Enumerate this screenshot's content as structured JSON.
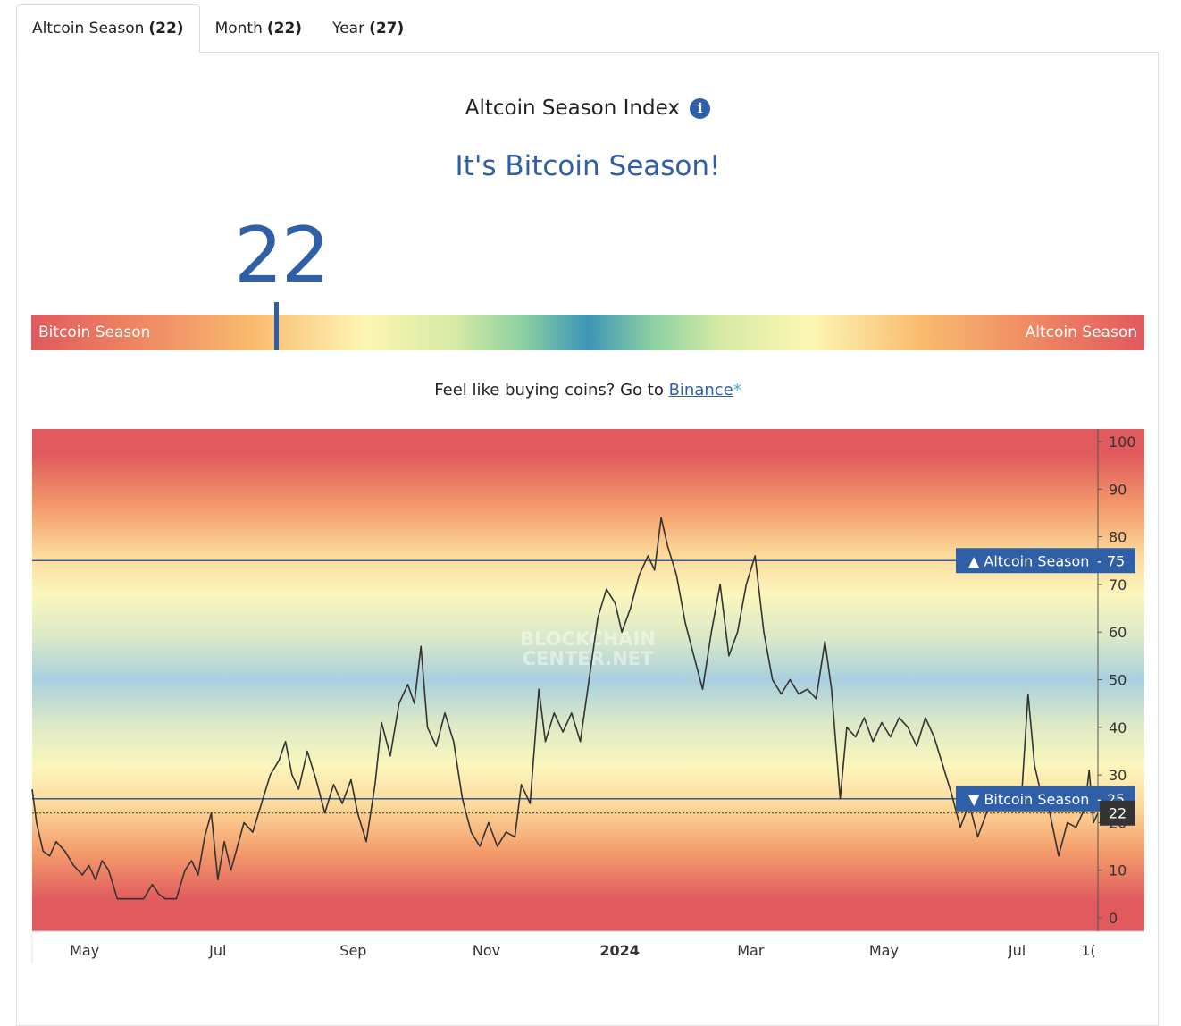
{
  "tabs": [
    {
      "label": "Altcoin Season",
      "count": "(22)"
    },
    {
      "label": "Month",
      "count": "(22)"
    },
    {
      "label": "Year",
      "count": "(27)"
    }
  ],
  "index": {
    "title": "Altcoin Season Index",
    "info_icon": "i",
    "headline": "It's Bitcoin Season!",
    "value": "22",
    "value_fraction": 0.22,
    "left_label": "Bitcoin Season",
    "right_label": "Altcoin Season"
  },
  "buy": {
    "prefix": "Feel like buying coins? Go to ",
    "link": "Binance",
    "suffix": "*"
  },
  "colors": {
    "accent": "#2f5fa7",
    "red": "#e05a5e",
    "teal": "#3d95b7"
  },
  "chart_data": {
    "type": "line",
    "watermark": [
      "BLOCKCHAIN",
      "CENTER.NET"
    ],
    "ylim": [
      -3,
      102
    ],
    "yticks": [
      0,
      10,
      20,
      30,
      40,
      50,
      60,
      70,
      80,
      90,
      100
    ],
    "xlim": [
      "2023-04-07",
      "2024-08-07"
    ],
    "xticks": [
      {
        "date": "2023-05-01",
        "label": "May",
        "bold": false
      },
      {
        "date": "2023-07-01",
        "label": "Jul",
        "bold": false
      },
      {
        "date": "2023-09-01",
        "label": "Sep",
        "bold": false
      },
      {
        "date": "2023-11-01",
        "label": "Nov",
        "bold": false
      },
      {
        "date": "2024-01-01",
        "label": "2024",
        "bold": true
      },
      {
        "date": "2024-03-01",
        "label": "Mar",
        "bold": false
      },
      {
        "date": "2024-05-01",
        "label": "May",
        "bold": false
      },
      {
        "date": "2024-07-01",
        "label": "Jul",
        "bold": false
      },
      {
        "date": "2024-08-01",
        "label": "1(",
        "bold": false
      }
    ],
    "thresholds": [
      {
        "value": 75,
        "label": "Altcoin Season",
        "arrow": "▲",
        "tag": "75"
      },
      {
        "value": 25,
        "label": "Bitcoin Season",
        "arrow": "▼",
        "tag": "25"
      }
    ],
    "current": {
      "value": 22,
      "label": "22"
    },
    "series": [
      {
        "values": [
          [
            "2023-04-07",
            27
          ],
          [
            "2023-04-09",
            20
          ],
          [
            "2023-04-12",
            14
          ],
          [
            "2023-04-15",
            13
          ],
          [
            "2023-04-18",
            16
          ],
          [
            "2023-04-22",
            14
          ],
          [
            "2023-04-26",
            11
          ],
          [
            "2023-04-30",
            9
          ],
          [
            "2023-05-03",
            11
          ],
          [
            "2023-05-06",
            8
          ],
          [
            "2023-05-09",
            12
          ],
          [
            "2023-05-12",
            10
          ],
          [
            "2023-05-16",
            4
          ],
          [
            "2023-05-22",
            4
          ],
          [
            "2023-05-28",
            4
          ],
          [
            "2023-06-01",
            7
          ],
          [
            "2023-06-04",
            5
          ],
          [
            "2023-06-07",
            4
          ],
          [
            "2023-06-12",
            4
          ],
          [
            "2023-06-16",
            10
          ],
          [
            "2023-06-19",
            12
          ],
          [
            "2023-06-22",
            9
          ],
          [
            "2023-06-25",
            17
          ],
          [
            "2023-06-28",
            22
          ],
          [
            "2023-07-01",
            8
          ],
          [
            "2023-07-04",
            16
          ],
          [
            "2023-07-07",
            10
          ],
          [
            "2023-07-10",
            15
          ],
          [
            "2023-07-13",
            20
          ],
          [
            "2023-07-17",
            18
          ],
          [
            "2023-07-21",
            24
          ],
          [
            "2023-07-25",
            30
          ],
          [
            "2023-07-29",
            33
          ],
          [
            "2023-08-01",
            37
          ],
          [
            "2023-08-04",
            30
          ],
          [
            "2023-08-07",
            27
          ],
          [
            "2023-08-11",
            35
          ],
          [
            "2023-08-15",
            29
          ],
          [
            "2023-08-19",
            22
          ],
          [
            "2023-08-23",
            28
          ],
          [
            "2023-08-27",
            24
          ],
          [
            "2023-08-31",
            29
          ],
          [
            "2023-09-03",
            22
          ],
          [
            "2023-09-07",
            16
          ],
          [
            "2023-09-11",
            28
          ],
          [
            "2023-09-14",
            41
          ],
          [
            "2023-09-18",
            34
          ],
          [
            "2023-09-22",
            45
          ],
          [
            "2023-09-26",
            49
          ],
          [
            "2023-09-29",
            45
          ],
          [
            "2023-10-02",
            57
          ],
          [
            "2023-10-05",
            40
          ],
          [
            "2023-10-09",
            36
          ],
          [
            "2023-10-13",
            43
          ],
          [
            "2023-10-17",
            37
          ],
          [
            "2023-10-21",
            25
          ],
          [
            "2023-10-25",
            18
          ],
          [
            "2023-10-29",
            15
          ],
          [
            "2023-11-02",
            20
          ],
          [
            "2023-11-06",
            15
          ],
          [
            "2023-11-10",
            18
          ],
          [
            "2023-11-14",
            17
          ],
          [
            "2023-11-17",
            28
          ],
          [
            "2023-11-21",
            24
          ],
          [
            "2023-11-25",
            48
          ],
          [
            "2023-11-28",
            37
          ],
          [
            "2023-12-02",
            43
          ],
          [
            "2023-12-06",
            39
          ],
          [
            "2023-12-10",
            43
          ],
          [
            "2023-12-14",
            37
          ],
          [
            "2023-12-18",
            50
          ],
          [
            "2023-12-22",
            63
          ],
          [
            "2023-12-26",
            69
          ],
          [
            "2023-12-30",
            66
          ],
          [
            "2024-01-02",
            60
          ],
          [
            "2024-01-06",
            65
          ],
          [
            "2024-01-10",
            72
          ],
          [
            "2024-01-14",
            76
          ],
          [
            "2024-01-17",
            73
          ],
          [
            "2024-01-20",
            84
          ],
          [
            "2024-01-23",
            78
          ],
          [
            "2024-01-27",
            72
          ],
          [
            "2024-01-31",
            62
          ],
          [
            "2024-02-04",
            55
          ],
          [
            "2024-02-08",
            48
          ],
          [
            "2024-02-12",
            60
          ],
          [
            "2024-02-16",
            70
          ],
          [
            "2024-02-20",
            55
          ],
          [
            "2024-02-24",
            60
          ],
          [
            "2024-02-28",
            70
          ],
          [
            "2024-03-03",
            76
          ],
          [
            "2024-03-07",
            60
          ],
          [
            "2024-03-11",
            50
          ],
          [
            "2024-03-15",
            47
          ],
          [
            "2024-03-19",
            50
          ],
          [
            "2024-03-23",
            47
          ],
          [
            "2024-03-27",
            48
          ],
          [
            "2024-03-31",
            46
          ],
          [
            "2024-04-04",
            58
          ],
          [
            "2024-04-07",
            48
          ],
          [
            "2024-04-11",
            25
          ],
          [
            "2024-04-14",
            40
          ],
          [
            "2024-04-18",
            38
          ],
          [
            "2024-04-22",
            42
          ],
          [
            "2024-04-26",
            37
          ],
          [
            "2024-04-30",
            41
          ],
          [
            "2024-05-04",
            38
          ],
          [
            "2024-05-08",
            42
          ],
          [
            "2024-05-12",
            40
          ],
          [
            "2024-05-16",
            36
          ],
          [
            "2024-05-20",
            42
          ],
          [
            "2024-05-24",
            38
          ],
          [
            "2024-05-28",
            32
          ],
          [
            "2024-06-01",
            26
          ],
          [
            "2024-06-05",
            19
          ],
          [
            "2024-06-09",
            24
          ],
          [
            "2024-06-13",
            17
          ],
          [
            "2024-06-17",
            22
          ],
          [
            "2024-06-21",
            26
          ],
          [
            "2024-06-25",
            23
          ],
          [
            "2024-06-29",
            24
          ],
          [
            "2024-07-03",
            25
          ],
          [
            "2024-07-06",
            47
          ],
          [
            "2024-07-09",
            32
          ],
          [
            "2024-07-12",
            26
          ],
          [
            "2024-07-16",
            22
          ],
          [
            "2024-07-20",
            13
          ],
          [
            "2024-07-24",
            20
          ],
          [
            "2024-07-28",
            19
          ],
          [
            "2024-08-01",
            23
          ],
          [
            "2024-08-03",
            31
          ],
          [
            "2024-08-05",
            20
          ],
          [
            "2024-08-07",
            22
          ]
        ]
      }
    ]
  }
}
